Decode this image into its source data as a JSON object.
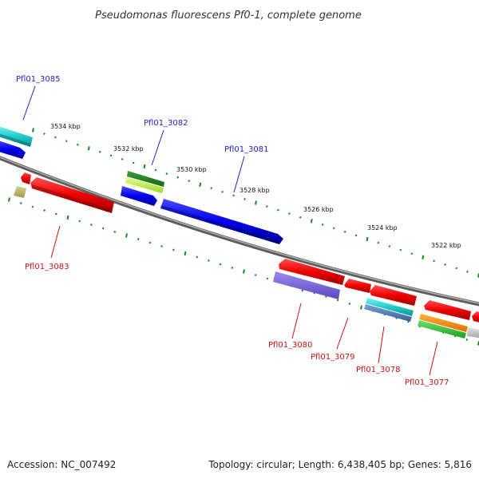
{
  "title": "Pseudomonas fluorescens Pf0-1, complete genome",
  "footer": {
    "accession": "Accession: NC_007492",
    "summary": "Topology: circular; Length: 6,438,405 bp; Genes: 5,816"
  },
  "kbp_labels": [
    "3534 kbp",
    "3532 kbp",
    "3530 kbp",
    "3528 kbp",
    "3526 kbp",
    "3524 kbp",
    "3522 kbp"
  ],
  "gene_labels": {
    "top": [
      "Pfl01_3085",
      "Pfl01_3082",
      "Pfl01_3081"
    ],
    "bottom": [
      "Pfl01_3083",
      "Pfl01_3080",
      "Pfl01_3079",
      "Pfl01_3078",
      "Pfl01_3077"
    ]
  },
  "colors": {
    "backbone": "#7a7a7a",
    "forward_gene": "#0000ee",
    "reverse_gene": "#ee0000",
    "tick": "#1a8a1a",
    "label_top": "#2222cc",
    "label_bottom": "#cc1111"
  }
}
